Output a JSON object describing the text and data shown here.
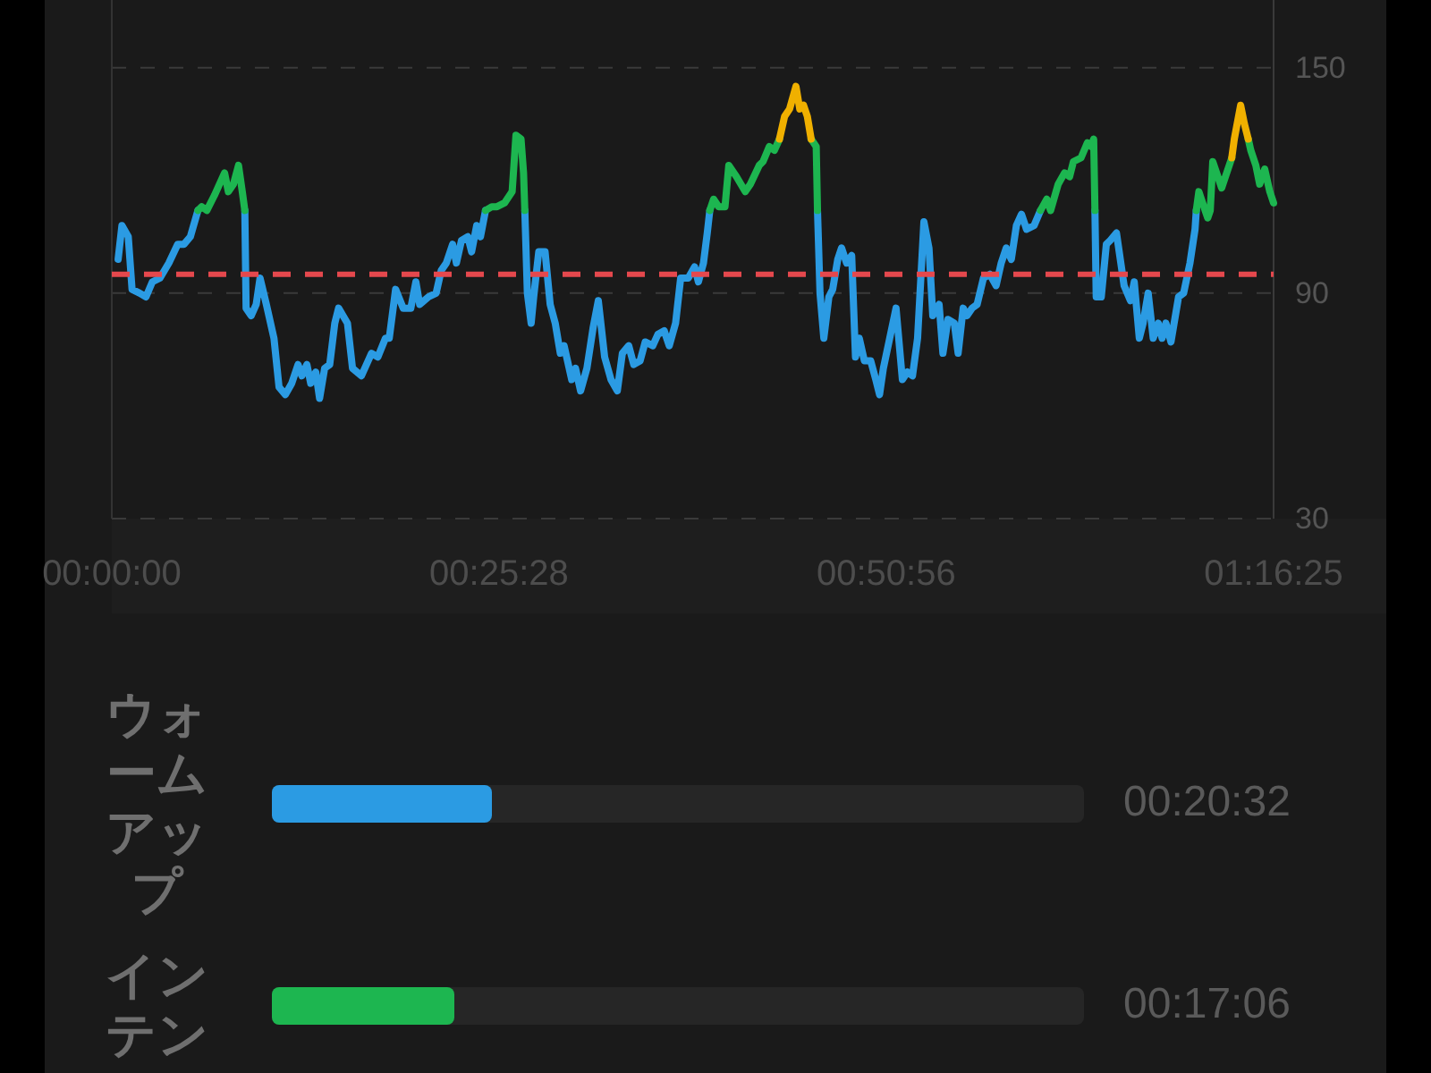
{
  "chart_data": [
    {
      "type": "line",
      "xlim": [
        0,
        4585
      ],
      "xticks": [
        {
          "value": 0,
          "label": "00:00:00"
        },
        {
          "value": 1528,
          "label": "00:25:28"
        },
        {
          "value": 3056,
          "label": "00:50:56"
        },
        {
          "value": 4585,
          "label": "01:16:25"
        }
      ],
      "ylim": [
        30,
        168
      ],
      "yticks": [
        30,
        90,
        150
      ],
      "grid": "y",
      "ref_lines": [
        {
          "axis": "y",
          "value": 95,
          "color": "#e5484d",
          "line_style": "dashed"
        }
      ],
      "x": [
        25,
        40,
        65,
        80,
        110,
        135,
        160,
        190,
        225,
        260,
        285,
        310,
        340,
        355,
        375,
        405,
        445,
        460,
        480,
        500,
        515,
        525,
        530,
        550,
        570,
        585,
        610,
        640,
        660,
        685,
        710,
        735,
        750,
        770,
        785,
        805,
        820,
        840,
        860,
        880,
        895,
        930,
        950,
        985,
        1025,
        1050,
        1080,
        1095,
        1120,
        1150,
        1180,
        1200,
        1215,
        1250,
        1280,
        1300,
        1320,
        1345,
        1360,
        1380,
        1405,
        1420,
        1440,
        1455,
        1475,
        1500,
        1520,
        1550,
        1580,
        1595,
        1615,
        1625,
        1630,
        1640,
        1655,
        1665,
        1685,
        1710,
        1730,
        1750,
        1770,
        1785,
        1815,
        1830,
        1850,
        1875,
        1900,
        1920,
        1945,
        1970,
        1995,
        2015,
        2040,
        2060,
        2085,
        2105,
        2135,
        2155,
        2180,
        2200,
        2225,
        2245,
        2275,
        2300,
        2315,
        2335,
        2350,
        2360,
        2375,
        2395,
        2420,
        2435,
        2465,
        2500,
        2520,
        2555,
        2570,
        2595,
        2615,
        2635,
        2655,
        2675,
        2700,
        2715,
        2730,
        2745,
        2760,
        2780,
        2785,
        2795,
        2810,
        2830,
        2845,
        2865,
        2880,
        2900,
        2920,
        2935,
        2950,
        2970,
        2995,
        3015,
        3030,
        3045,
        3070,
        3095,
        3120,
        3140,
        3160,
        3180,
        3205,
        3225,
        3240,
        3265,
        3280,
        3300,
        3325,
        3340,
        3360,
        3375,
        3395,
        3415,
        3440,
        3465,
        3490,
        3510,
        3530,
        3550,
        3570,
        3590,
        3610,
        3640,
        3665,
        3690,
        3705,
        3735,
        3760,
        3780,
        3795,
        3825,
        3850,
        3865,
        3875,
        3880,
        3885,
        3905,
        3925,
        3940,
        3965,
        3995,
        4020,
        4035,
        4055,
        4070,
        4090,
        4110,
        4130,
        4145,
        4160,
        4180,
        4210,
        4230,
        4255,
        4275,
        4280,
        4290,
        4305,
        4315,
        4325,
        4335,
        4345,
        4365,
        4380,
        4420,
        4430,
        4455,
        4470,
        4485,
        4495,
        4515,
        4530,
        4550,
        4570,
        4585
      ],
      "series": [
        {
          "color": "#2b9be3",
          "values": [
            99,
            108,
            105,
            91,
            90,
            89,
            93,
            94,
            98,
            103,
            103,
            105,
            112,
            null,
            null,
            null,
            null,
            null,
            null,
            null,
            null,
            112,
            86,
            84,
            87,
            94,
            87,
            78,
            65,
            63,
            66,
            71,
            68,
            71,
            66,
            69,
            62,
            70,
            71,
            82,
            86,
            82,
            70,
            68,
            74,
            73,
            78,
            78,
            91,
            86,
            86,
            93,
            87,
            89,
            90,
            96,
            98,
            103,
            98,
            104,
            105,
            101,
            108,
            105,
            112,
            null,
            null,
            null,
            null,
            null,
            null,
            null,
            112,
            90,
            82,
            89,
            101,
            101,
            87,
            82,
            74,
            76,
            67,
            70,
            64,
            70,
            81,
            88,
            73,
            67,
            64,
            74,
            76,
            71,
            72,
            77,
            76,
            79,
            80,
            76,
            82,
            94,
            94,
            97,
            93,
            98,
            106,
            112,
            null,
            null,
            null,
            null,
            null,
            null,
            null,
            null,
            null,
            null,
            null,
            null,
            null,
            null,
            null,
            null,
            null,
            null,
            null,
            null,
            112,
            90,
            78,
            89,
            91,
            99,
            102,
            98,
            100,
            73,
            78,
            72,
            72,
            67,
            63,
            70,
            78,
            86,
            67,
            69,
            68,
            78,
            109,
            102,
            84,
            87,
            74,
            83,
            82,
            74,
            86,
            84,
            86,
            87,
            94,
            95,
            92,
            98,
            102,
            99,
            108,
            111,
            107,
            108,
            112,
            null,
            null,
            null,
            null,
            null,
            null,
            null,
            null,
            null,
            null,
            112,
            89,
            89,
            103,
            104,
            106,
            92,
            88,
            93,
            78,
            82,
            90,
            78,
            82,
            78,
            82,
            77,
            89,
            90,
            98,
            107,
            112,
            null,
            null,
            null,
            null,
            null,
            null,
            null,
            null,
            null,
            null,
            null,
            null,
            null,
            null,
            null,
            null,
            null,
            null,
            null
          ]
        },
        {
          "color": "#1db650",
          "values": [
            null,
            null,
            null,
            null,
            null,
            null,
            null,
            null,
            null,
            null,
            null,
            null,
            112,
            113,
            112,
            116,
            122,
            117,
            119,
            124,
            117,
            112,
            null,
            null,
            null,
            null,
            null,
            null,
            null,
            null,
            null,
            null,
            null,
            null,
            null,
            null,
            null,
            null,
            null,
            null,
            null,
            null,
            null,
            null,
            null,
            null,
            null,
            null,
            null,
            null,
            null,
            null,
            null,
            null,
            null,
            null,
            null,
            null,
            null,
            null,
            null,
            null,
            null,
            null,
            112,
            113,
            113,
            114,
            117,
            132,
            131,
            122,
            112,
            null,
            null,
            null,
            null,
            null,
            null,
            null,
            null,
            null,
            null,
            null,
            null,
            null,
            null,
            null,
            null,
            null,
            null,
            null,
            null,
            null,
            null,
            null,
            null,
            null,
            null,
            null,
            null,
            null,
            null,
            null,
            null,
            null,
            null,
            112,
            115,
            113,
            113,
            124,
            121,
            117,
            119,
            124,
            125,
            129,
            128,
            131,
            null,
            null,
            null,
            null,
            null,
            null,
            131,
            129,
            112,
            null,
            null,
            null,
            null,
            null,
            null,
            null,
            null,
            null,
            null,
            null,
            null,
            null,
            null,
            null,
            null,
            null,
            null,
            null,
            null,
            null,
            null,
            null,
            null,
            null,
            null,
            null,
            null,
            null,
            null,
            null,
            null,
            null,
            null,
            null,
            null,
            null,
            null,
            null,
            null,
            null,
            null,
            null,
            112,
            115,
            112,
            119,
            122,
            121,
            125,
            126,
            130,
            129,
            131,
            112,
            null,
            null,
            null,
            null,
            null,
            null,
            null,
            null,
            null,
            null,
            null,
            null,
            null,
            null,
            null,
            null,
            null,
            null,
            null,
            null,
            112,
            117,
            114,
            112,
            110,
            112,
            125,
            121,
            118,
            126,
            null,
            null,
            null,
            131,
            128,
            124,
            119,
            123,
            117,
            114
          ]
        },
        {
          "color": "#f0b000",
          "values": [
            null,
            null,
            null,
            null,
            null,
            null,
            null,
            null,
            null,
            null,
            null,
            null,
            null,
            null,
            null,
            null,
            null,
            null,
            null,
            null,
            null,
            null,
            null,
            null,
            null,
            null,
            null,
            null,
            null,
            null,
            null,
            null,
            null,
            null,
            null,
            null,
            null,
            null,
            null,
            null,
            null,
            null,
            null,
            null,
            null,
            null,
            null,
            null,
            null,
            null,
            null,
            null,
            null,
            null,
            null,
            null,
            null,
            null,
            null,
            null,
            null,
            null,
            null,
            null,
            null,
            null,
            null,
            null,
            null,
            null,
            null,
            null,
            null,
            null,
            null,
            null,
            null,
            null,
            null,
            null,
            null,
            null,
            null,
            null,
            null,
            null,
            null,
            null,
            null,
            null,
            null,
            null,
            null,
            null,
            null,
            null,
            null,
            null,
            null,
            null,
            null,
            null,
            null,
            null,
            null,
            null,
            null,
            null,
            null,
            null,
            null,
            null,
            null,
            null,
            null,
            null,
            null,
            null,
            null,
            131,
            137,
            139,
            145,
            139,
            140,
            137,
            131,
            null,
            null,
            null,
            null,
            null,
            null,
            null,
            null,
            null,
            null,
            null,
            null,
            null,
            null,
            null,
            null,
            null,
            null,
            null,
            null,
            null,
            null,
            null,
            null,
            null,
            null,
            null,
            null,
            null,
            null,
            null,
            null,
            null,
            null,
            null,
            null,
            null,
            null,
            null,
            null,
            null,
            null,
            null,
            null,
            null,
            null,
            null,
            null,
            null,
            null,
            null,
            null,
            null,
            null,
            null,
            null,
            null,
            null,
            null,
            null,
            null,
            null,
            null,
            null,
            null,
            null,
            null,
            null,
            null,
            null,
            null,
            null,
            null,
            null,
            null,
            null,
            null,
            null,
            null,
            null,
            null,
            null,
            null,
            null,
            null,
            null,
            126,
            131,
            140,
            135,
            131,
            null,
            null,
            null,
            null,
            null,
            null
          ]
        }
      ]
    },
    {
      "type": "bar",
      "orientation": "horizontal",
      "categories": [
        "ウォームアップ",
        "インテン"
      ],
      "values": [
        1232,
        1026
      ],
      "colors": [
        "#2b9be3",
        "#1db650"
      ],
      "value_labels": [
        "00:20:32",
        "00:17:06"
      ]
    }
  ]
}
